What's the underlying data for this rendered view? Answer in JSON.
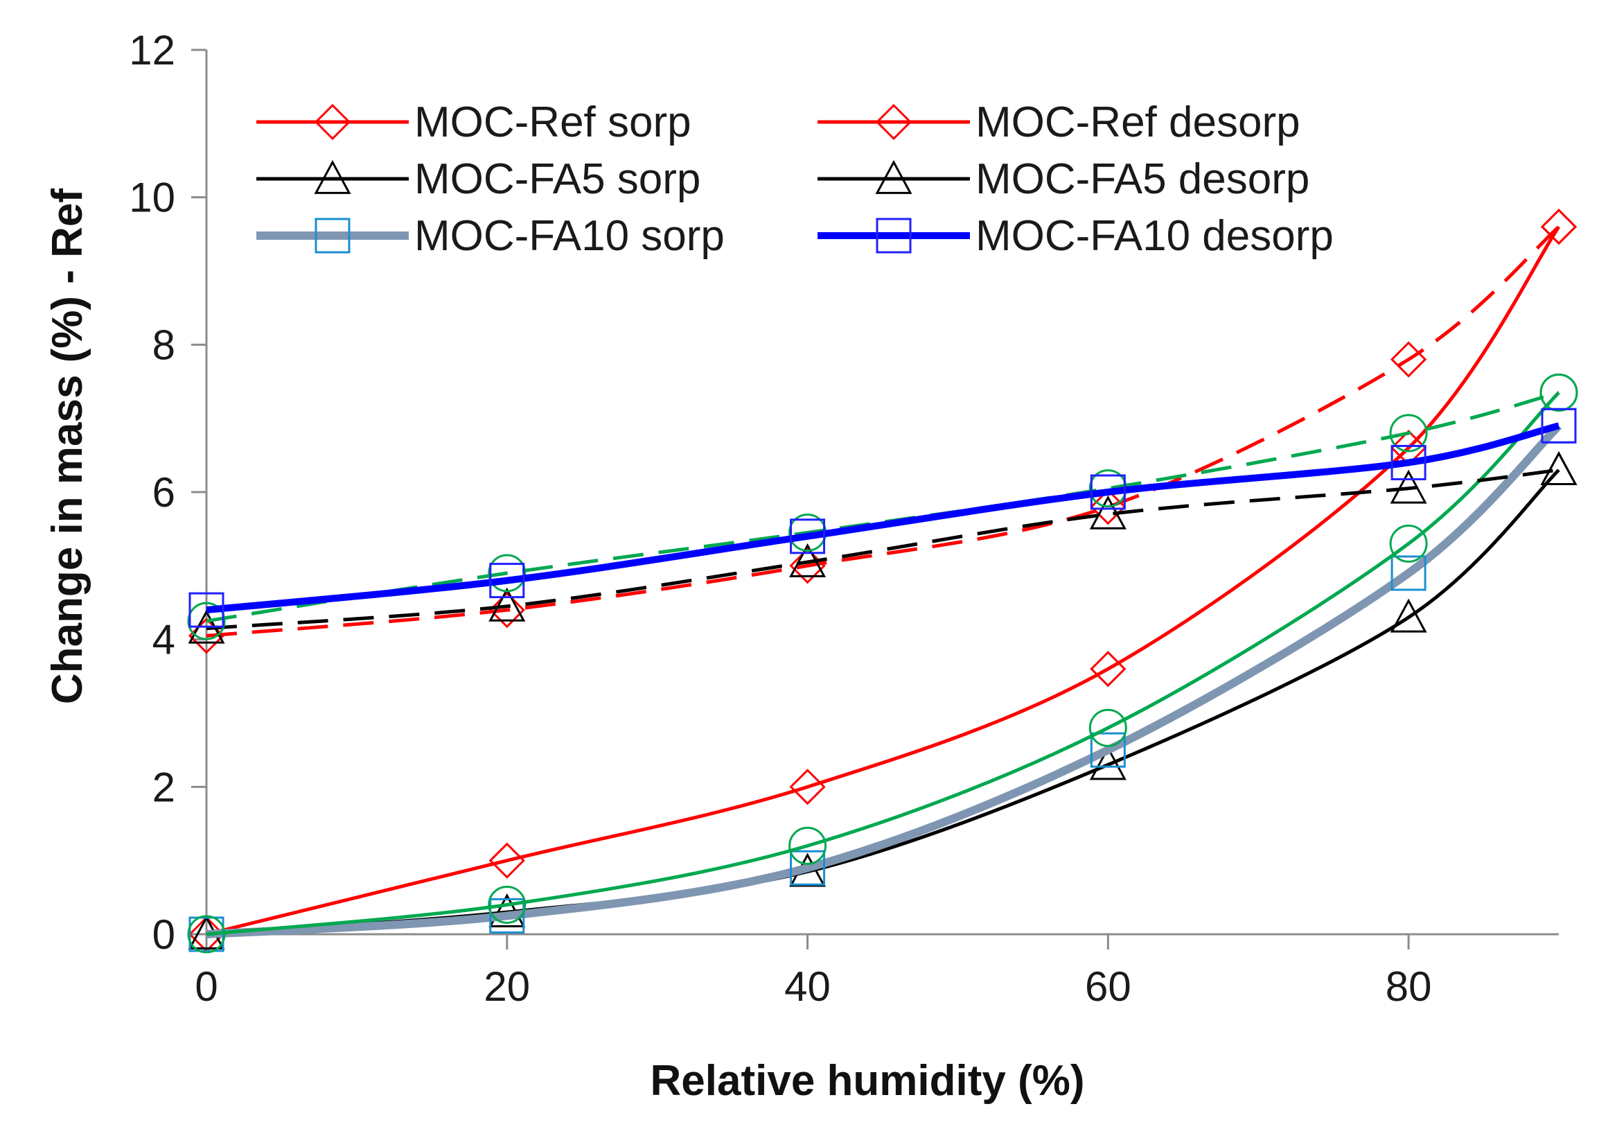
{
  "chart_data": {
    "type": "line",
    "title": "",
    "xlabel": "Relative humidity (%)",
    "ylabel": "Change in mass (%) - Ref",
    "xlim": [
      0,
      90
    ],
    "ylim": [
      0,
      12
    ],
    "xticks": [
      0,
      20,
      40,
      60,
      80
    ],
    "yticks": [
      0,
      2,
      4,
      6,
      8,
      10,
      12
    ],
    "grid": false,
    "legend_position": "top",
    "x": [
      0,
      20,
      40,
      60,
      80,
      90
    ],
    "series": [
      {
        "name": "MOC-Ref sorp",
        "color": "#ff0000",
        "marker": "diamond",
        "dash": "solid",
        "width": 5,
        "in_legend": true,
        "values": [
          0,
          1.0,
          2.0,
          3.6,
          6.6,
          9.6
        ]
      },
      {
        "name": "MOC-Ref desorp",
        "color": "#ff0000",
        "marker": "diamond",
        "dash": "dashed",
        "width": 5,
        "in_legend": true,
        "values": [
          4.05,
          4.4,
          5.0,
          5.8,
          7.8,
          9.6
        ]
      },
      {
        "name": "MOC-FA5 sorp",
        "color": "#000000",
        "marker": "triangle",
        "dash": "solid",
        "width": 5,
        "in_legend": true,
        "values": [
          0,
          0.3,
          0.85,
          2.3,
          4.3,
          6.3
        ]
      },
      {
        "name": "MOC-FA5 desorp",
        "color": "#000000",
        "marker": "triangle",
        "dash": "dashed",
        "width": 5,
        "in_legend": true,
        "values": [
          4.15,
          4.45,
          5.05,
          5.7,
          6.05,
          6.3
        ]
      },
      {
        "name": "MOC-FA10 sorp",
        "color": "#7f96b2",
        "marker": "square",
        "marker_color": "#1a8fd0",
        "dash": "solid",
        "width": 12,
        "in_legend": true,
        "values": [
          0,
          0.25,
          0.9,
          2.5,
          4.9,
          6.9
        ]
      },
      {
        "name": "MOC-FA10 desorp",
        "color": "#0000ff",
        "marker": "square",
        "marker_color": "#2020ff",
        "dash": "solid",
        "width": 10,
        "in_legend": true,
        "values": [
          4.4,
          4.8,
          5.4,
          6.0,
          6.4,
          6.9
        ]
      },
      {
        "name": "",
        "color": "#00a84f",
        "marker": "circle",
        "dash": "solid",
        "width": 5,
        "in_legend": false,
        "values": [
          0,
          0.4,
          1.2,
          2.8,
          5.3,
          7.35
        ]
      },
      {
        "name": "",
        "color": "#00a84f",
        "marker": "circle",
        "dash": "dashed",
        "width": 5,
        "in_legend": false,
        "values": [
          4.25,
          4.9,
          5.45,
          6.05,
          6.8,
          7.35
        ]
      }
    ]
  }
}
